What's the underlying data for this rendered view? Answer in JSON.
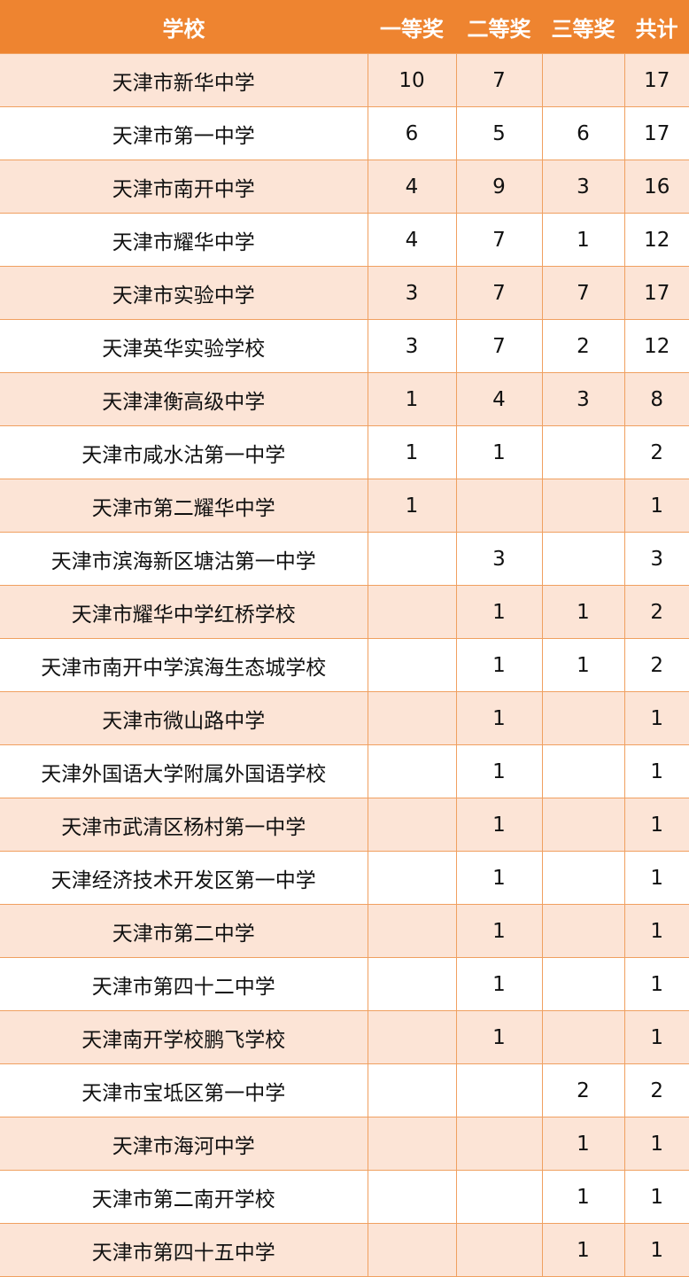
{
  "colors": {
    "header": "#EE8430",
    "stripe": "#FCE4D6",
    "border": "#F0A060"
  },
  "headers": [
    "学校",
    "一等奖",
    "二等奖",
    "三等奖",
    "共计"
  ],
  "rows": [
    [
      "天津市新华中学",
      "10",
      "7",
      "",
      "17"
    ],
    [
      "天津市第一中学",
      "6",
      "5",
      "6",
      "17"
    ],
    [
      "天津市南开中学",
      "4",
      "9",
      "3",
      "16"
    ],
    [
      "天津市耀华中学",
      "4",
      "7",
      "1",
      "12"
    ],
    [
      "天津市实验中学",
      "3",
      "7",
      "7",
      "17"
    ],
    [
      "天津英华实验学校",
      "3",
      "7",
      "2",
      "12"
    ],
    [
      "天津津衡高级中学",
      "1",
      "4",
      "3",
      "8"
    ],
    [
      "天津市咸水沽第一中学",
      "1",
      "1",
      "",
      "2"
    ],
    [
      "天津市第二耀华中学",
      "1",
      "",
      "",
      "1"
    ],
    [
      "天津市滨海新区塘沽第一中学",
      "",
      "3",
      "",
      "3"
    ],
    [
      "天津市耀华中学红桥学校",
      "",
      "1",
      "1",
      "2"
    ],
    [
      "天津市南开中学滨海生态城学校",
      "",
      "1",
      "1",
      "2"
    ],
    [
      "天津市微山路中学",
      "",
      "1",
      "",
      "1"
    ],
    [
      "天津外国语大学附属外国语学校",
      "",
      "1",
      "",
      "1"
    ],
    [
      "天津市武清区杨村第一中学",
      "",
      "1",
      "",
      "1"
    ],
    [
      "天津经济技术开发区第一中学",
      "",
      "1",
      "",
      "1"
    ],
    [
      "天津市第二中学",
      "",
      "1",
      "",
      "1"
    ],
    [
      "天津市第四十二中学",
      "",
      "1",
      "",
      "1"
    ],
    [
      "天津南开学校鹏飞学校",
      "",
      "1",
      "",
      "1"
    ],
    [
      "天津市宝坻区第一中学",
      "",
      "",
      "2",
      "2"
    ],
    [
      "天津市海河中学",
      "",
      "",
      "1",
      "1"
    ],
    [
      "天津市第二南开学校",
      "",
      "",
      "1",
      "1"
    ],
    [
      "天津市第四十五中学",
      "",
      "",
      "1",
      "1"
    ]
  ]
}
